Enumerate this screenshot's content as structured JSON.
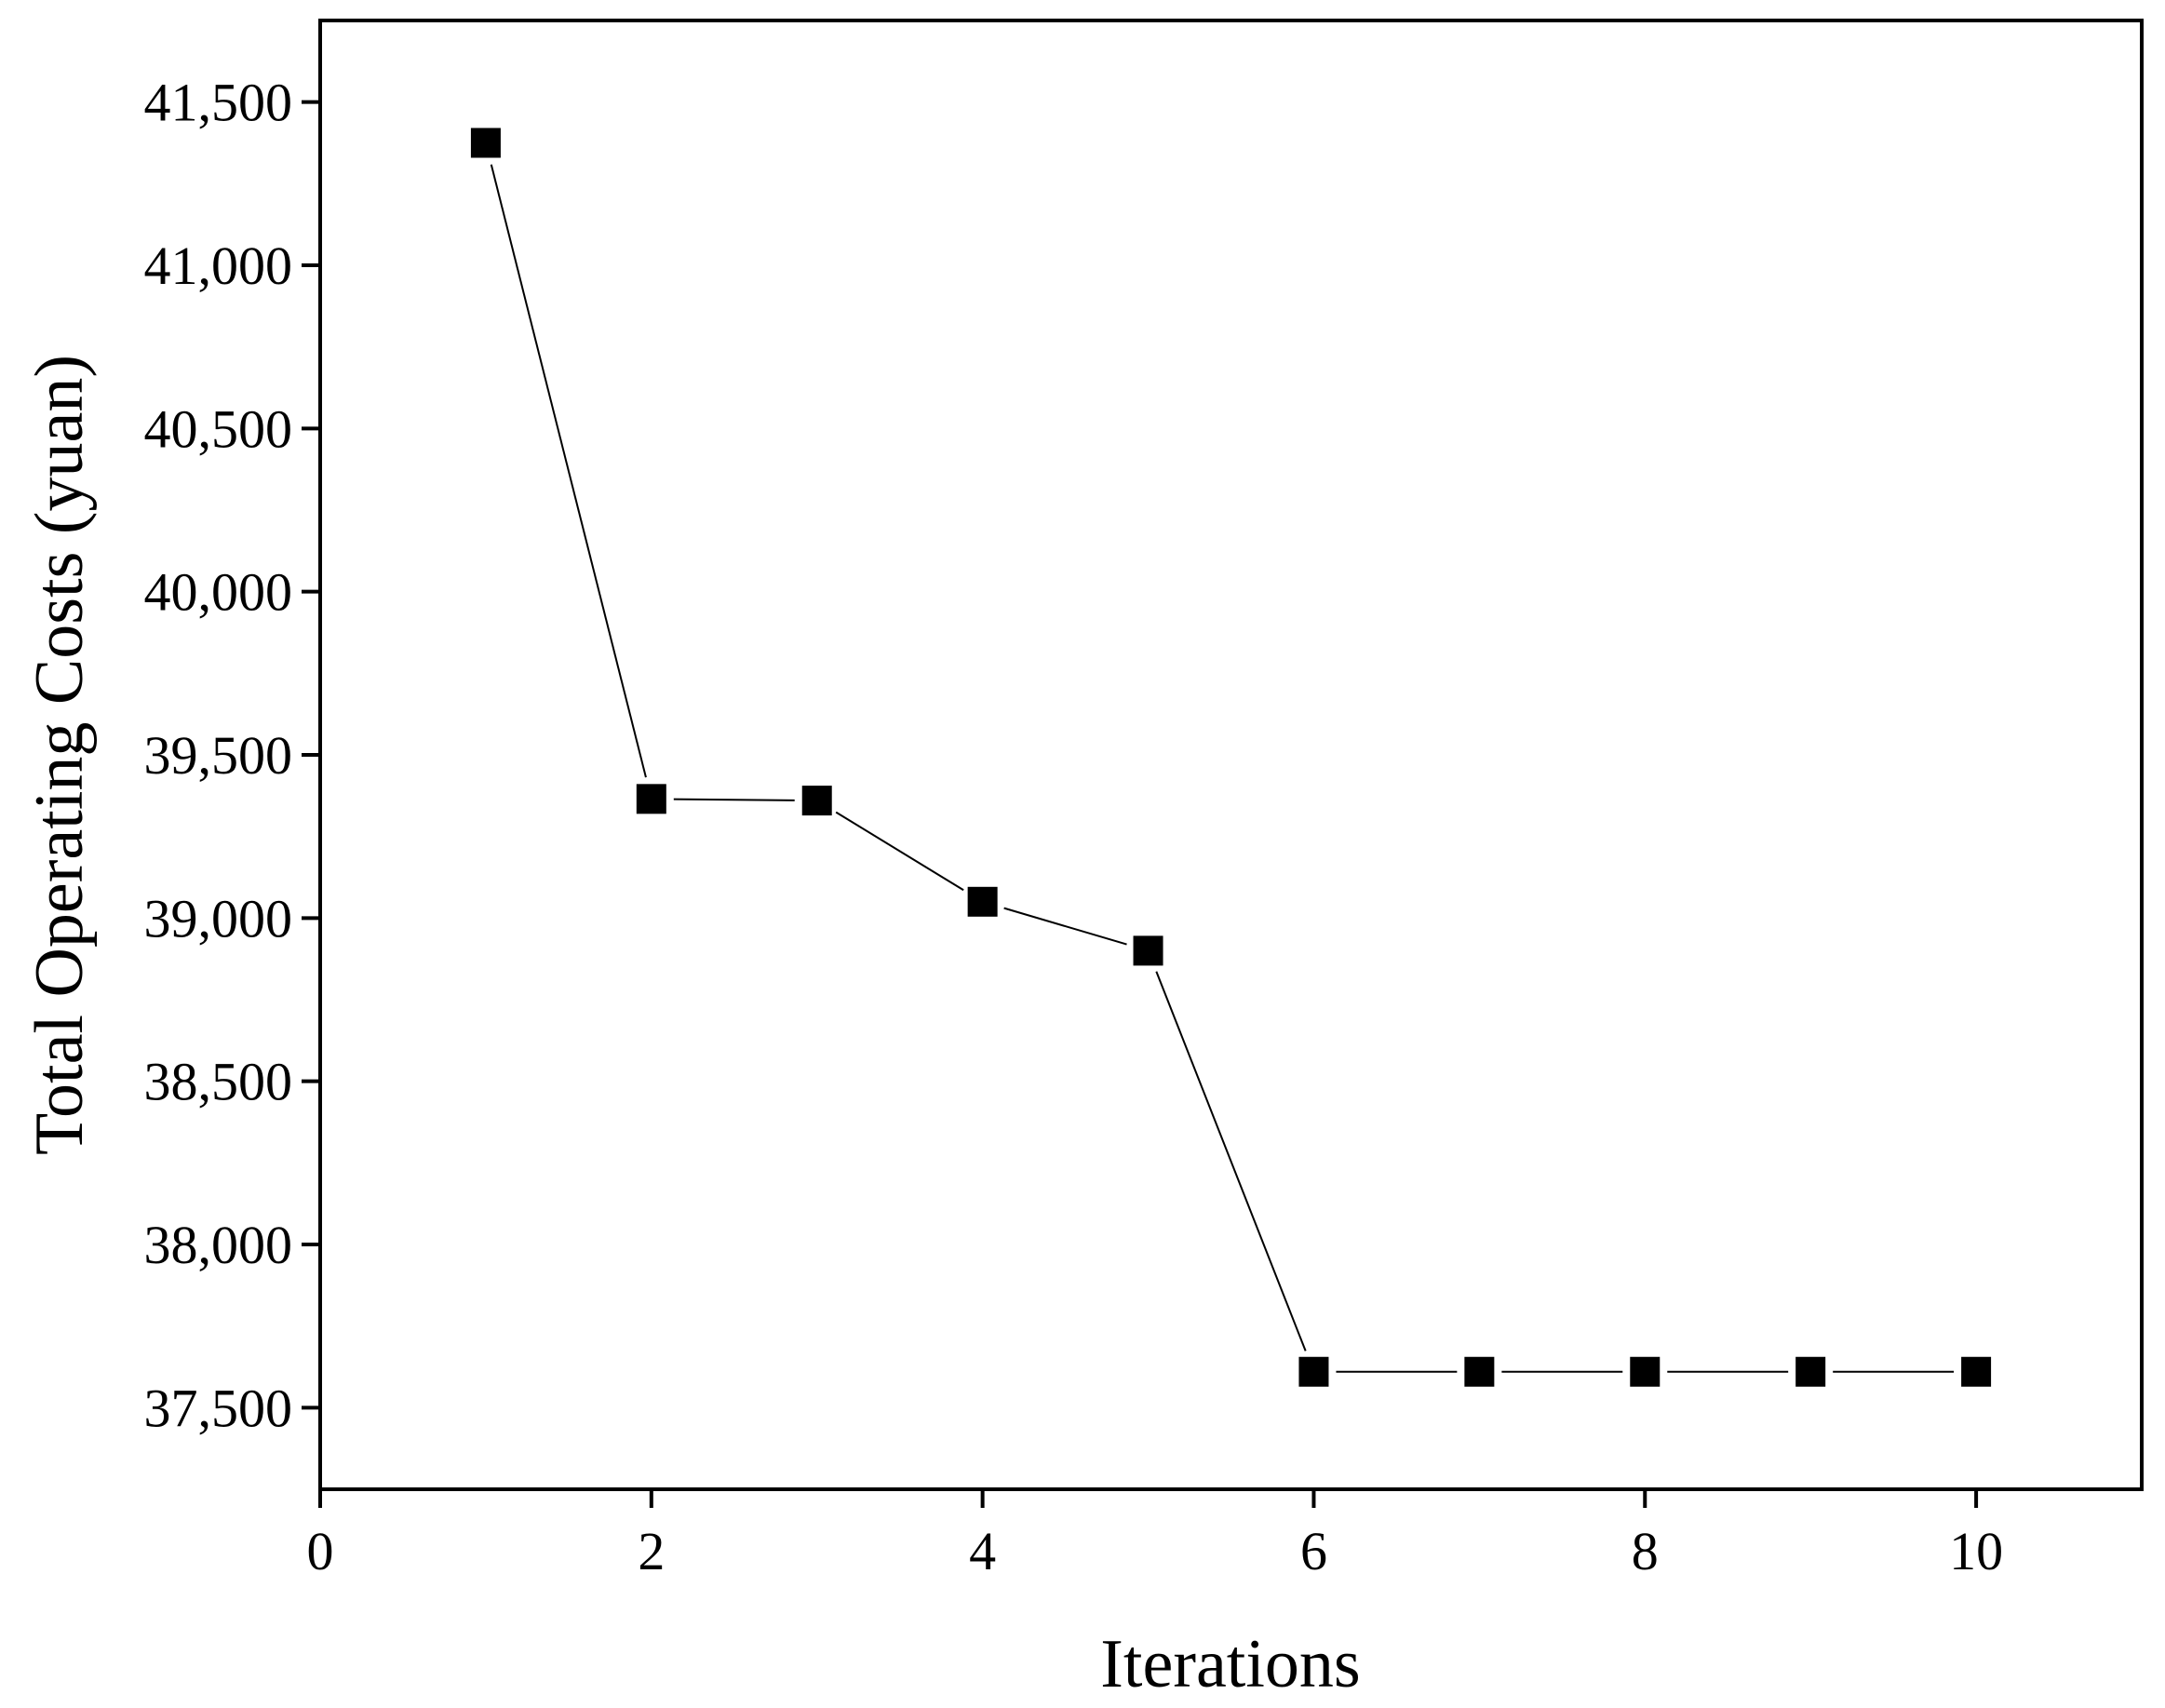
{
  "chart_data": {
    "type": "line",
    "title": "",
    "xlabel": "Iterations",
    "ylabel": "Total Operating Costs (yuan)",
    "xlim": [
      0,
      11
    ],
    "ylim": [
      37250,
      41750
    ],
    "xticks": [
      0,
      2,
      4,
      6,
      8,
      10
    ],
    "xtick_labels": [
      "0",
      "2",
      "4",
      "6",
      "8",
      "10"
    ],
    "yticks": [
      37500,
      38000,
      38500,
      39000,
      39500,
      40000,
      40500,
      41000,
      41500
    ],
    "ytick_labels": [
      "37,500",
      "38,000",
      "38,500",
      "39,000",
      "39,500",
      "40,000",
      "40,500",
      "41,000",
      "41,500"
    ],
    "grid": false,
    "legend": "none",
    "series": [
      {
        "name": "Total Operating Costs",
        "marker": "square",
        "color": "#000000",
        "x": [
          1,
          2,
          3,
          4,
          5,
          6,
          7,
          8,
          9,
          10
        ],
        "y": [
          41375,
          39365,
          39360,
          39050,
          38900,
          37610,
          37610,
          37610,
          37610,
          37610
        ]
      }
    ]
  }
}
